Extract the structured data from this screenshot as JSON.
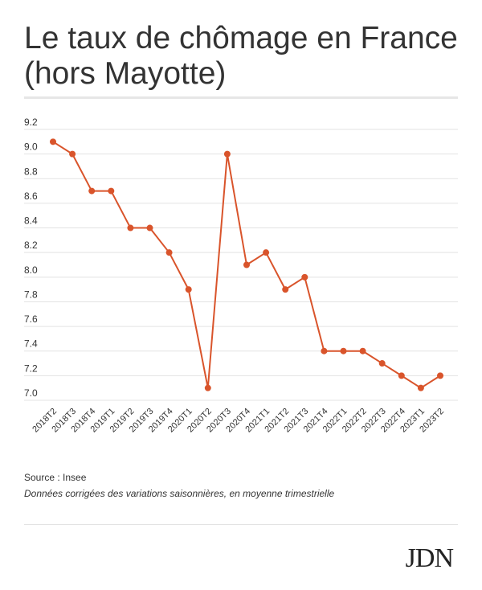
{
  "header": {
    "title": "Le taux de chômage en France (hors Mayotte)"
  },
  "footer": {
    "source": "Source : Insee",
    "note": "Données corrigées des variations saisonnières, en moyenne trimestrielle",
    "logo": "JDN"
  },
  "colors": {
    "series": "#d9542b",
    "grid": "#e3e3e3",
    "text": "#333333"
  },
  "chart_data": {
    "type": "line",
    "title": "Le taux de chômage en France (hors Mayotte)",
    "xlabel": "",
    "ylabel": "",
    "ylim": [
      7.0,
      9.2
    ],
    "yticks": [
      7.0,
      7.2,
      7.4,
      7.6,
      7.8,
      8.0,
      8.2,
      8.4,
      8.6,
      8.8,
      9.0,
      9.2
    ],
    "grid": true,
    "legend": "none",
    "categories": [
      "2018T2",
      "2018T3",
      "2018T4",
      "2019T1",
      "2019T2",
      "2019T3",
      "2019T4",
      "2020T1",
      "2020T2",
      "2020T3",
      "2020T4",
      "2021T1",
      "2021T2",
      "2021T3",
      "2021T4",
      "2022T1",
      "2022T2",
      "2022T3",
      "2022T4",
      "2023T1",
      "2023T2"
    ],
    "series": [
      {
        "values": [
          9.1,
          9.0,
          8.7,
          8.7,
          8.4,
          8.4,
          8.2,
          7.9,
          7.1,
          9.0,
          8.1,
          8.2,
          7.9,
          8.0,
          7.4,
          7.4,
          7.4,
          7.3,
          7.2,
          7.1,
          7.2
        ]
      }
    ]
  }
}
